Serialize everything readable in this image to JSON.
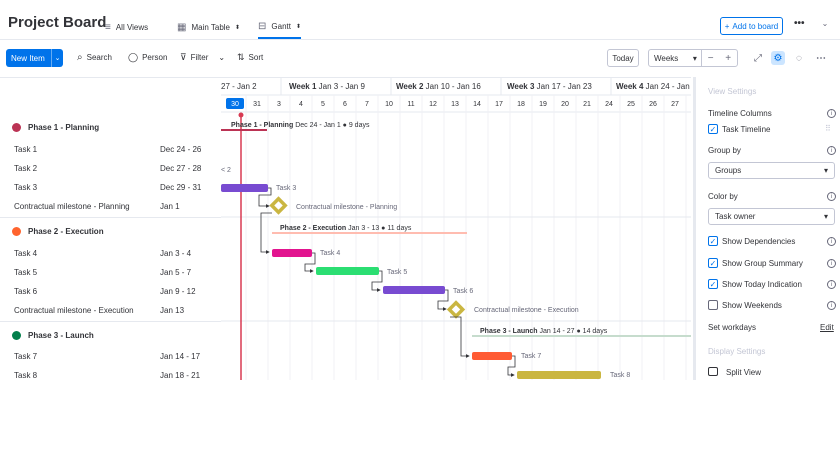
{
  "header": {
    "title": "Project Board",
    "tabs": [
      {
        "label": "All Views",
        "icon": "menu-icon"
      },
      {
        "label": "Main Table",
        "icon": "table-icon",
        "has_dropdown": true
      },
      {
        "label": "Gantt",
        "icon": "gantt-icon",
        "has_dropdown": true,
        "active": true
      }
    ],
    "add_to_board": "Add to board"
  },
  "toolbar": {
    "new_item": "New Item",
    "search": "Search",
    "person": "Person",
    "filter": "Filter",
    "sort": "Sort",
    "today": "Today",
    "zoom_level": "Weeks",
    "zoom_out": "−",
    "zoom_in": "+"
  },
  "timeline": {
    "weeks": [
      {
        "label_bold": "",
        "label": "27 - Jan 2"
      },
      {
        "label_bold": "Week 1",
        "label": "Jan 3 - Jan 9"
      },
      {
        "label_bold": "Week 2",
        "label": "Jan 10 - Jan 16"
      },
      {
        "label_bold": "Week 3",
        "label": "Jan 17 - Jan 23"
      },
      {
        "label_bold": "Week 4",
        "label": "Jan 24 - Jan 30"
      }
    ],
    "days": [
      "30",
      "31",
      "3",
      "4",
      "5",
      "6",
      "7",
      "10",
      "11",
      "12",
      "13",
      "14",
      "17",
      "18",
      "19",
      "20",
      "21",
      "24",
      "25",
      "26",
      "27"
    ],
    "today_day": "30",
    "cut_label": "< 2"
  },
  "groups": [
    {
      "name": "Phase 1 - Planning",
      "color": "#bb3354",
      "summary": {
        "name": "Phase 1 - Planning",
        "detail": "Dec 24 - Jan 1 ● 9 days"
      },
      "items": [
        {
          "name": "Task 1",
          "date": "Dec 24 - 26"
        },
        {
          "name": "Task 2",
          "date": "Dec 27 - 28"
        },
        {
          "name": "Task 3",
          "date": "Dec 29 - 31"
        },
        {
          "name": "Contractual milestone - Planning",
          "date": "Jan 1"
        }
      ]
    },
    {
      "name": "Phase 2 - Execution",
      "color": "#ff642e",
      "summary": {
        "name": "Phase 2 - Execution",
        "detail": "Jan 3 - 13 ● 11 days"
      },
      "items": [
        {
          "name": "Task 4",
          "date": "Jan 3 - 4"
        },
        {
          "name": "Task 5",
          "date": "Jan 5 - 7"
        },
        {
          "name": "Task 6",
          "date": "Jan 9 - 12"
        },
        {
          "name": "Contractual milestone - Execution",
          "date": "Jan 13"
        }
      ]
    },
    {
      "name": "Phase 3 - Launch",
      "color": "#037f4c",
      "summary": {
        "name": "Phase 3 - Launch",
        "detail": "Jan 14 - 27 ● 14 days"
      },
      "items": [
        {
          "name": "Task 7",
          "date": "Jan 14 - 17"
        },
        {
          "name": "Task 8",
          "date": "Jan 18 - 21"
        }
      ]
    }
  ],
  "bar_labels": {
    "task3": "Task 3",
    "ms1": "Contractual milestone - Planning",
    "task4": "Task 4",
    "task5": "Task 5",
    "task6": "Task 6",
    "ms2": "Contractual milestone - Execution",
    "task7": "Task 7",
    "task8": "Task 8"
  },
  "bar_colors": {
    "task3": "#784bd1",
    "task4": "#e2148f",
    "task5": "#2bde72",
    "task6": "#784bd1",
    "task7": "#ff5b34",
    "task8": "#cab641",
    "milestone": "#cab641",
    "phase1_line": "#bb3354",
    "phase2_line": "#ffbcb0",
    "phase3_line": "#c6dccd",
    "today_line": "#d83a52"
  },
  "settings": {
    "view_settings": "View Settings",
    "timeline_columns": "Timeline Columns",
    "task_timeline": "Task Timeline",
    "group_by": "Group by",
    "group_by_value": "Groups",
    "color_by": "Color by",
    "color_by_value": "Task owner",
    "show_dependencies": "Show Dependencies",
    "show_group_summary": "Show Group Summary",
    "show_today": "Show Today Indication",
    "show_weekends": "Show Weekends",
    "set_workdays": "Set workdays",
    "edit": "Edit",
    "display_settings": "Display Settings",
    "split_view": "Split View"
  }
}
